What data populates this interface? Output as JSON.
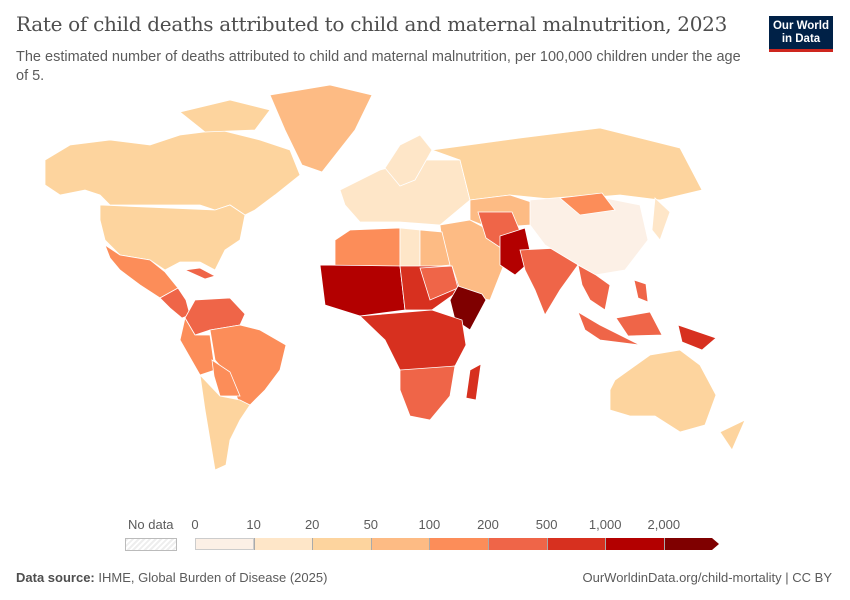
{
  "header": {
    "title": "Rate of child deaths attributed to child and maternal malnutrition, 2023",
    "subtitle": "The estimated number of deaths attributed to child and maternal malnutrition, per 100,000 children under the age of 5.",
    "logo_line1": "Our World",
    "logo_line2": "in Data"
  },
  "legend": {
    "no_data_label": "No data",
    "ticks": [
      "0",
      "10",
      "20",
      "50",
      "100",
      "200",
      "500",
      "1,000",
      "2,000"
    ],
    "colors": [
      "#fcf0e6",
      "#fee6c8",
      "#fdd49e",
      "#fdbb84",
      "#fc8d59",
      "#ef6548",
      "#d7301f",
      "#b30000",
      "#7f0000"
    ]
  },
  "footer": {
    "source_label": "Data source:",
    "source_text": "IHME, Global Burden of Disease (2025)",
    "url": "OurWorldinData.org/child-mortality | CC BY"
  },
  "colors": {
    "ocean": "#ffffff",
    "border": "#ffffff",
    "logo_bg": "#002147",
    "logo_accent": "#ce261e"
  }
}
